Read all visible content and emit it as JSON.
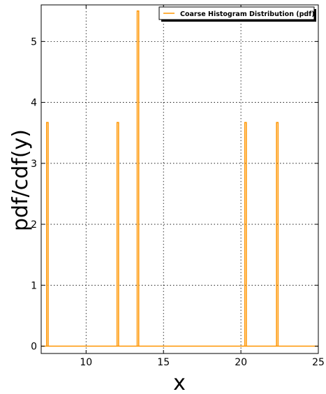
{
  "chart_data": {
    "type": "line",
    "xlabel": "x",
    "ylabel": "pdf/cdf(y)",
    "xlim": [
      7.1,
      25.0
    ],
    "ylim": [
      -0.12,
      5.6
    ],
    "xticks": [
      10,
      15,
      20,
      25
    ],
    "yticks": [
      0,
      1,
      2,
      3,
      4,
      5
    ],
    "grid": true,
    "legend_position": "top-right",
    "series": [
      {
        "name": "Coarse Histogram Distribution (pdf)",
        "color": "#ff9500",
        "spikes": [
          {
            "x_start": 7.45,
            "x_end": 7.55,
            "y": 3.67
          },
          {
            "x_start": 12.0,
            "x_end": 12.1,
            "y": 3.67
          },
          {
            "x_start": 13.3,
            "x_end": 13.4,
            "y": 5.5
          },
          {
            "x_start": 20.25,
            "x_end": 20.35,
            "y": 3.67
          },
          {
            "x_start": 22.3,
            "x_end": 22.4,
            "y": 3.67
          }
        ],
        "baseline": 0
      }
    ]
  }
}
